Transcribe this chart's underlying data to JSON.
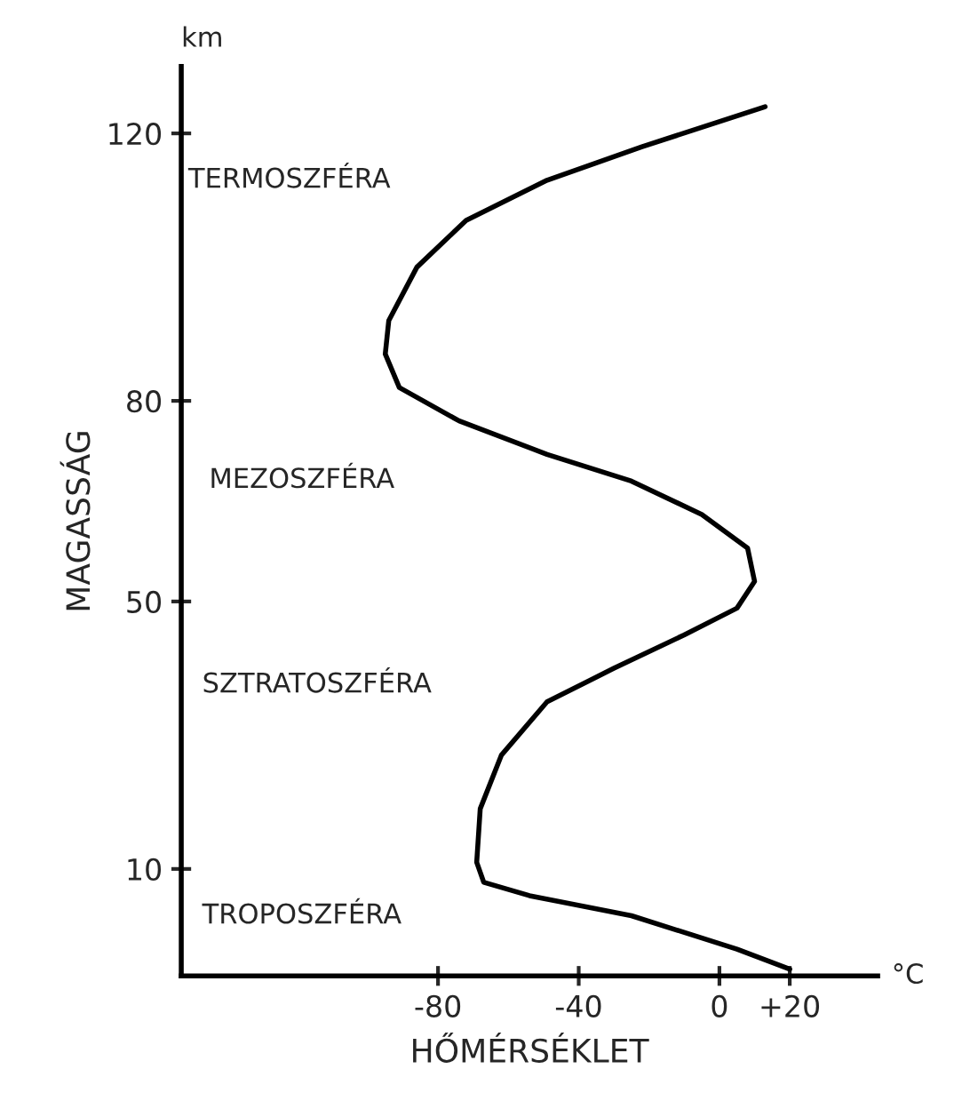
{
  "chart_data": {
    "type": "line",
    "xlabel": "HŐMÉRSÉKLET",
    "ylabel": "MAGASSÁG",
    "x": [
      20,
      5,
      -25,
      -54,
      -67,
      -69,
      -68,
      -62,
      -49,
      -30,
      -10,
      5,
      10,
      8,
      -5,
      -25,
      -49,
      -74,
      -91,
      -95,
      -94,
      -86,
      -72,
      -49,
      -22,
      13
    ],
    "series": [
      {
        "color": "#000000",
        "values": [
          -5,
          -2,
          3,
          6,
          8,
          11,
          19,
          27,
          35,
          40,
          45,
          49,
          53,
          58,
          63,
          68,
          72,
          77,
          82,
          87,
          92,
          100,
          107,
          113,
          118,
          124
        ]
      }
    ],
    "xlim": [
      -153,
      45
    ],
    "ylim": [
      -6,
      130
    ],
    "xticks": [
      -80,
      -40,
      0,
      {
        "value": 20,
        "label": "+20"
      }
    ],
    "yticks": [
      10,
      50,
      80,
      120
    ],
    "grid": false,
    "marker": "none",
    "line_style": "solid",
    "annotations": [
      "TERMOSZFÉRA",
      "MEZOSZFÉRA",
      "SZTRATOSZFÉRA",
      "TROPOSZFÉRA",
      "km",
      "°C"
    ]
  }
}
